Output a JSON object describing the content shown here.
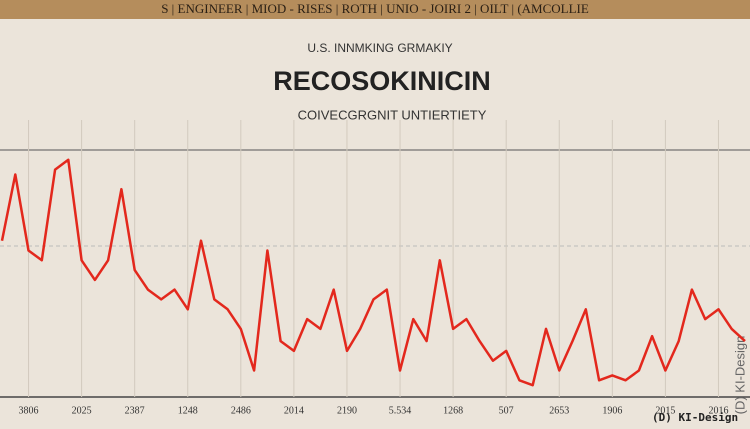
{
  "chart_data": {
    "type": "line",
    "banner": "S | ENGINEER | MIOD - RISES | ROTH | UNIO - JOIRI 2 | OILT | (AMCOLLIE",
    "supertitle": "U.S. INNMKING GRMAKIY",
    "title": "RECOSOKINICIN",
    "subtitle": "COIVECGRGNIT UNTIERTIETY",
    "categories": [
      null,
      null,
      "3806",
      null,
      null,
      null,
      "2025",
      null,
      null,
      null,
      "2387",
      null,
      null,
      null,
      "1248",
      null,
      null,
      null,
      "2486",
      null,
      null,
      null,
      "2014",
      null,
      null,
      null,
      "2190",
      null,
      null,
      null,
      "5.534",
      null,
      null,
      null,
      "1268",
      null,
      null,
      null,
      "507",
      null,
      null,
      null,
      "2653",
      null,
      null,
      null,
      "1906",
      null,
      null,
      null,
      "2015",
      null,
      null,
      null,
      "2016",
      null,
      null
    ],
    "series": [
      {
        "color": "#e3281d",
        "values": [
          63,
          90,
          59,
          55,
          92,
          96,
          55,
          47,
          55,
          84,
          51,
          43,
          39,
          43,
          35,
          63,
          39,
          35,
          27,
          10,
          59,
          22,
          18,
          31,
          27,
          43,
          18,
          27,
          39,
          43,
          10,
          31,
          22,
          55,
          27,
          31,
          22,
          14,
          18,
          6,
          4,
          27,
          10,
          22,
          35,
          6,
          8,
          6,
          10,
          24,
          10,
          22,
          43,
          31,
          35,
          27,
          22
        ]
      }
    ],
    "ylim": [
      0,
      100
    ],
    "watermark": "(D) KI-Design",
    "watermark_vertical": "(D) KI-Design"
  }
}
